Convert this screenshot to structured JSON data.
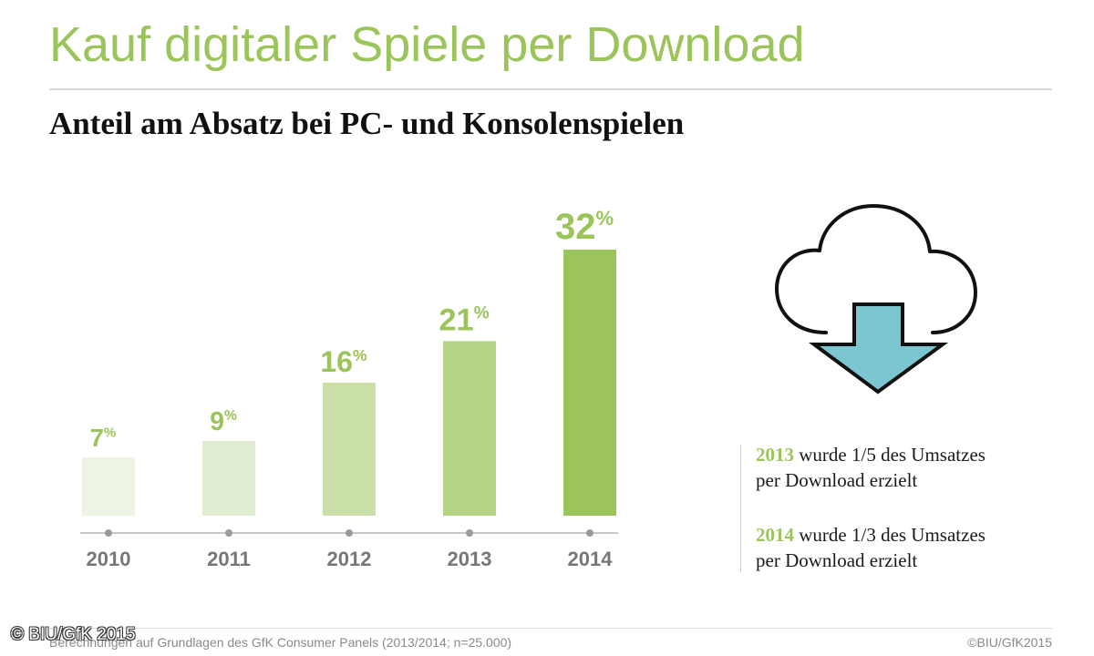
{
  "header": {
    "title": "Kauf digitaler Spiele per Download",
    "subtitle": "Anteil am Absatz bei PC- und Konsolenspielen"
  },
  "chart_data": {
    "type": "bar",
    "categories": [
      "2010",
      "2011",
      "2012",
      "2013",
      "2014"
    ],
    "values": [
      7,
      9,
      16,
      21,
      32
    ],
    "value_suffix": "%",
    "bar_colors": [
      "#eef4e4",
      "#e0ecd0",
      "#cbdfa8",
      "#b5d385",
      "#9bc45a"
    ],
    "label_color": "#9bc45a",
    "ylim": [
      0,
      32
    ],
    "grid": false,
    "title": "",
    "xlabel": "",
    "ylabel": ""
  },
  "icon": {
    "name": "cloud-download-icon",
    "arrow_color": "#7cc6d2"
  },
  "notes": [
    {
      "year": "2013",
      "text": " wurde 1/5 des Umsatzes",
      "line2": "per Download erzielt"
    },
    {
      "year": "2014",
      "text": " wurde 1/3 des Umsatzes",
      "line2": "per Download erzielt"
    }
  ],
  "footer": {
    "source": "Berechnungen auf Grundlagen des GfK Consumer Panels (2013/2014; n=25.000)",
    "copyright": "©BIU/GfK2015",
    "watermark": "© BIU/GfK 2015"
  }
}
